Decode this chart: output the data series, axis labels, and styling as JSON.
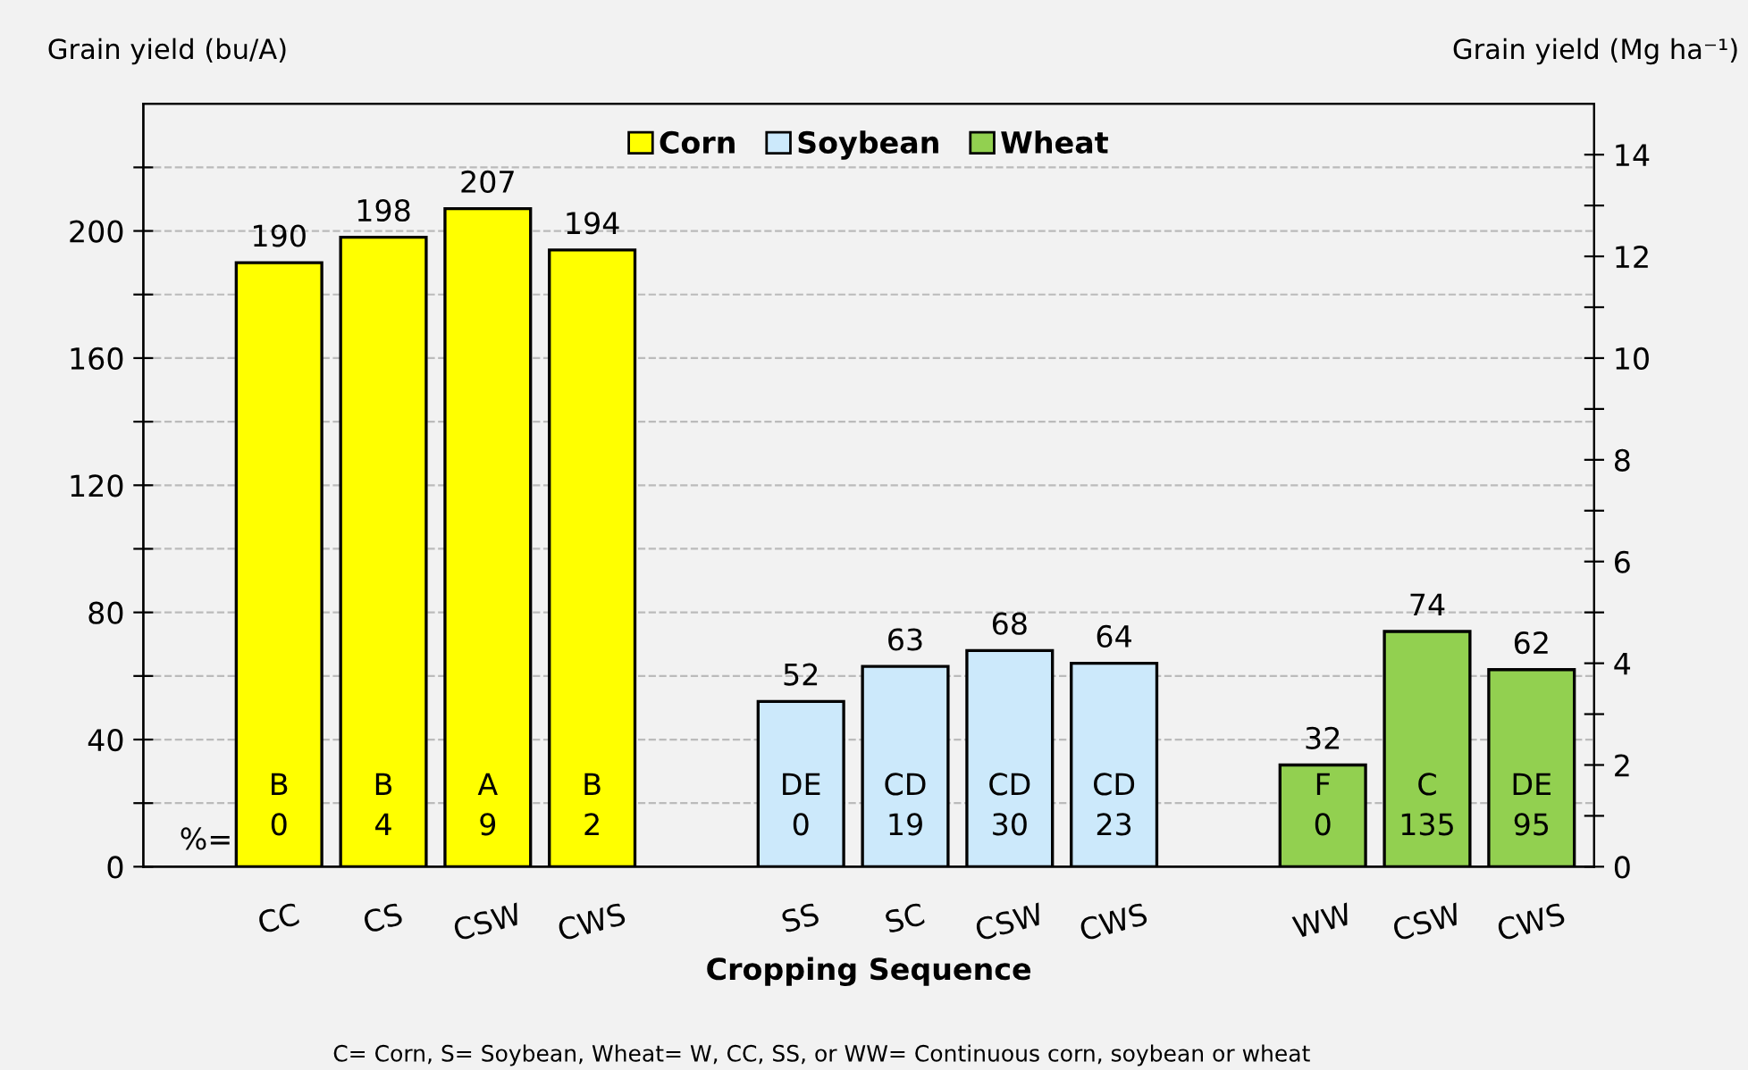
{
  "chart_data": {
    "type": "bar",
    "xlabel": "Cropping Sequence",
    "ylabel": "Grain yield (bu/A)",
    "y2label": "Grain yield (Mg ha⁻¹)",
    "categories": [
      "CC",
      "CS",
      "CSW",
      "CWS",
      null,
      "SS",
      "SC",
      "CSW",
      "CWS",
      null,
      "WW",
      "CSW",
      "CWS"
    ],
    "series": [
      {
        "name": "Corn",
        "color": "#ffff00",
        "values": [
          190,
          198,
          207,
          194,
          null,
          null,
          null,
          null,
          null,
          null,
          null,
          null,
          null
        ]
      },
      {
        "name": "Soybean",
        "color": "#cce9fb",
        "values": [
          null,
          null,
          null,
          null,
          null,
          52,
          63,
          68,
          64,
          null,
          null,
          null,
          null
        ]
      },
      {
        "name": "Wheat",
        "color": "#92d050",
        "values": [
          null,
          null,
          null,
          null,
          null,
          null,
          null,
          null,
          null,
          null,
          32,
          74,
          62
        ]
      }
    ],
    "data_labels": true,
    "ylim": [
      0,
      240
    ],
    "yticks": [
      0,
      {
        "value": 20,
        "label": null
      },
      40,
      {
        "value": 60,
        "label": null
      },
      80,
      {
        "value": 100,
        "label": null
      },
      120,
      {
        "value": 140,
        "label": null
      },
      160,
      {
        "value": 180,
        "label": null
      },
      200,
      {
        "value": 220,
        "label": null
      }
    ],
    "y2lim": [
      0,
      15
    ],
    "y2ticks": [
      0,
      {
        "value": 1,
        "label": null
      },
      2,
      {
        "value": 3,
        "label": null
      },
      4,
      {
        "value": 5,
        "label": null
      },
      6,
      {
        "value": 7,
        "label": null
      },
      8,
      {
        "value": 9,
        "label": null
      },
      10,
      {
        "value": 11,
        "label": null
      },
      12,
      {
        "value": 13,
        "label": null
      },
      14
    ],
    "grid": "y",
    "legend": "top",
    "annotations": [
      "%=",
      "B\n0",
      "B\n4",
      "A\n9",
      "B\n2",
      "DE\n0",
      "CD\n19",
      "CD\n30",
      "CD\n23",
      "F\n0",
      "C\n135",
      "DE\n95",
      "C= Corn, S= Soybean, Wheat= W, CC, SS, or WW= Continuous corn, soybean or wheat"
    ]
  }
}
